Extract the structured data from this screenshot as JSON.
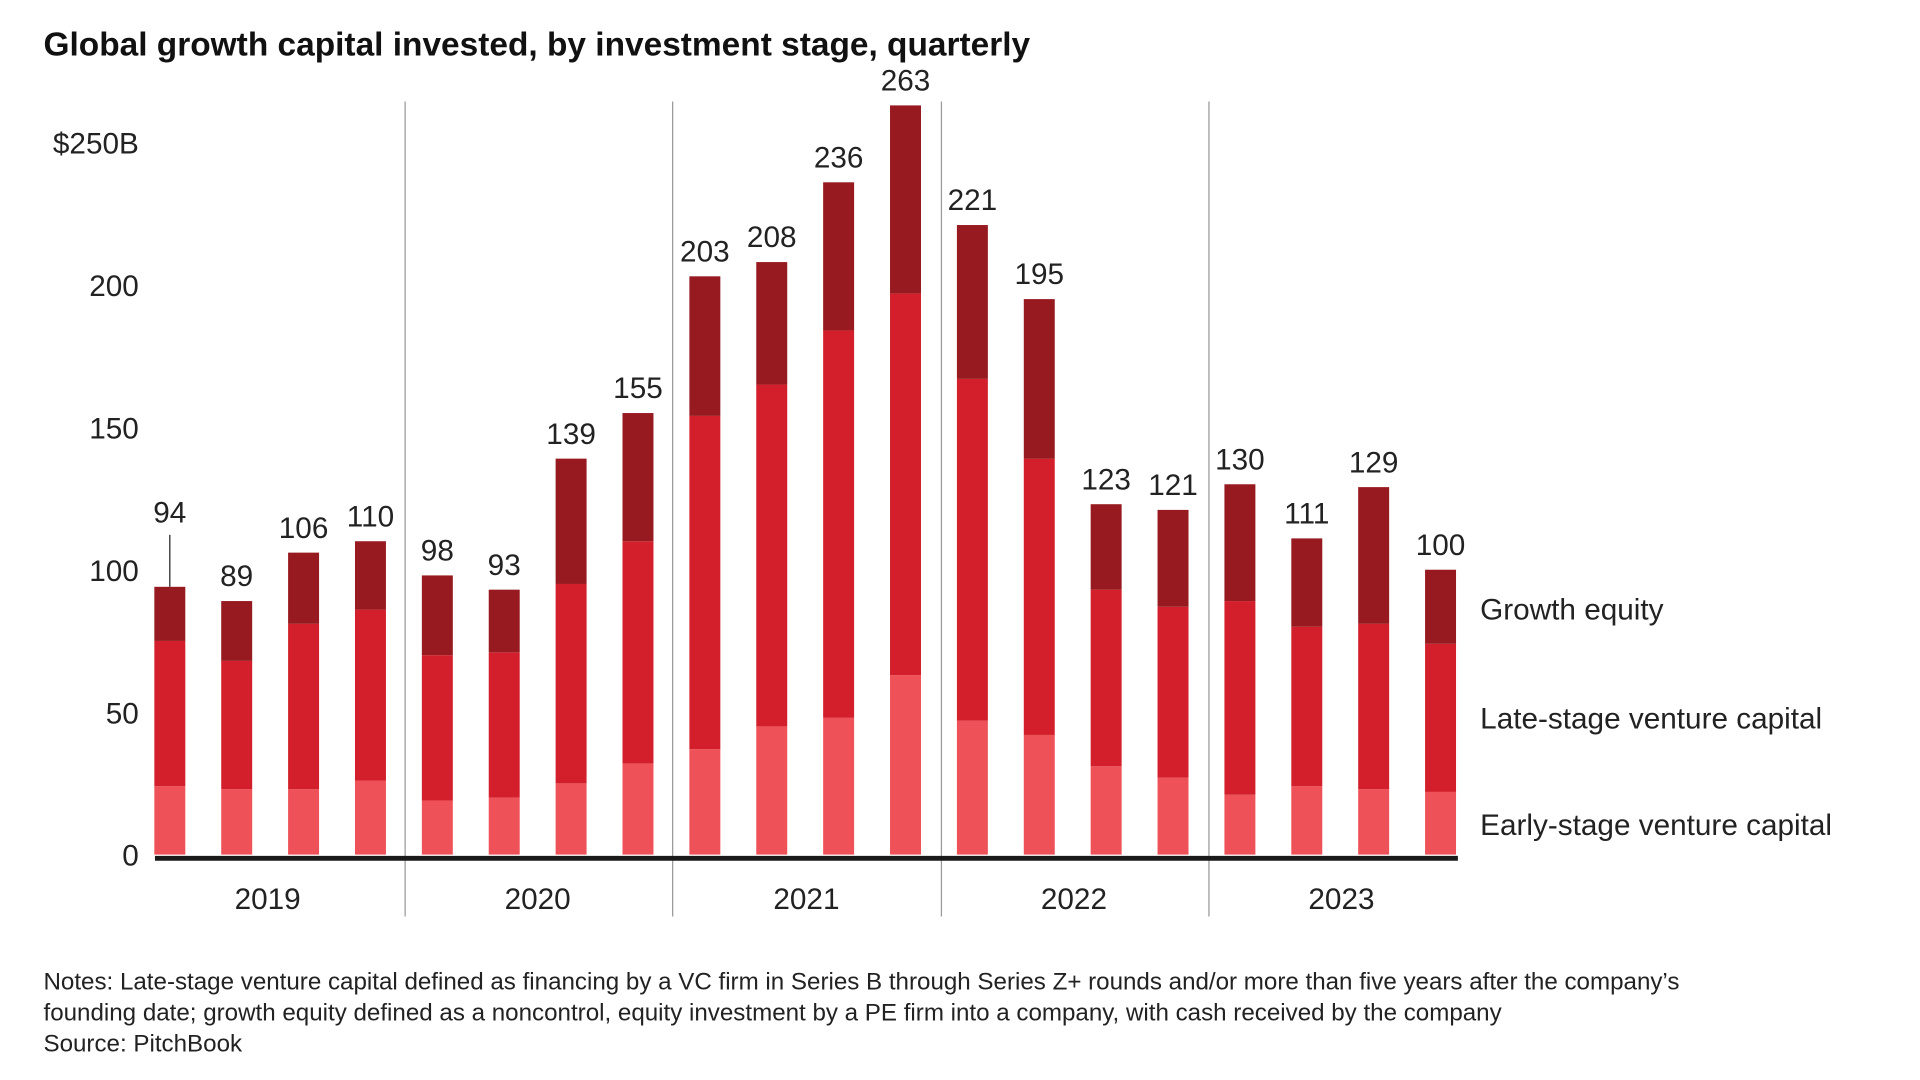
{
  "chart_data": {
    "type": "bar",
    "stacked": true,
    "title": "Global growth capital invested, by investment stage, quarterly",
    "ylabel": "",
    "xlabel": "",
    "ylim": [
      0,
      250
    ],
    "y_ticks": [
      {
        "value": 0,
        "label": "0"
      },
      {
        "value": 50,
        "label": "50"
      },
      {
        "value": 100,
        "label": "100"
      },
      {
        "value": 150,
        "label": "150"
      },
      {
        "value": 200,
        "label": "200"
      },
      {
        "value": 250,
        "label": "$250B"
      }
    ],
    "years": [
      "2019",
      "2020",
      "2021",
      "2022",
      "2023"
    ],
    "categories": [
      "2019 Q1",
      "2019 Q2",
      "2019 Q3",
      "2019 Q4",
      "2020 Q1",
      "2020 Q2",
      "2020 Q3",
      "2020 Q4",
      "2021 Q1",
      "2021 Q2",
      "2021 Q3",
      "2021 Q4",
      "2022 Q1",
      "2022 Q2",
      "2022 Q3",
      "2022 Q4",
      "2023 Q1",
      "2023 Q2",
      "2023 Q3",
      "2023 Q4"
    ],
    "totals": [
      94,
      89,
      106,
      110,
      98,
      93,
      139,
      155,
      203,
      208,
      236,
      263,
      221,
      195,
      123,
      121,
      130,
      111,
      129,
      100
    ],
    "series": [
      {
        "name": "Early-stage venture capital",
        "color": "#ef5158",
        "values": [
          24,
          23,
          23,
          26,
          19,
          20,
          25,
          32,
          37,
          45,
          48,
          63,
          47,
          42,
          31,
          27,
          21,
          24,
          23,
          22
        ]
      },
      {
        "name": "Late-stage venture capital",
        "color": "#d21f2b",
        "values": [
          51,
          45,
          58,
          60,
          51,
          51,
          70,
          78,
          117,
          120,
          136,
          134,
          120,
          97,
          62,
          60,
          68,
          56,
          58,
          52
        ]
      },
      {
        "name": "Growth equity",
        "color": "#961a1f",
        "values": [
          19,
          21,
          25,
          24,
          28,
          22,
          44,
          45,
          49,
          43,
          52,
          66,
          54,
          56,
          30,
          34,
          41,
          31,
          48,
          26
        ]
      }
    ],
    "legend_placement": "right",
    "grid": false
  },
  "notes": {
    "line1": "Notes: Late-stage venture capital defined as financing by a VC firm in Series B through Series Z+ rounds and/or more than five years after the company’s",
    "line2": "founding date; growth equity defined as a noncontrol, equity investment by a PE firm into a company, with cash received by the company",
    "source": "Source: PitchBook"
  }
}
